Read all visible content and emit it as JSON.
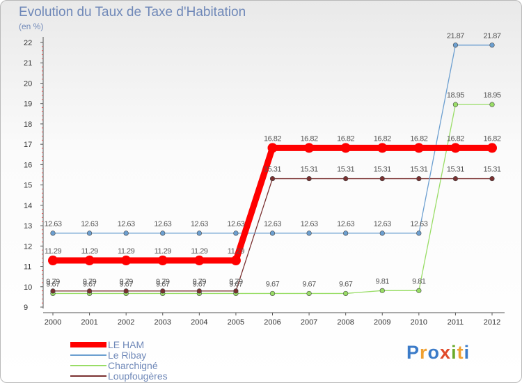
{
  "title": "Evolution du Taux de Taxe d'Habitation",
  "subtitle": "(en %)",
  "logo": {
    "letters": [
      "P",
      "r",
      "o",
      "x",
      "i",
      "t",
      "i"
    ],
    "colors": [
      "#3b7bc8",
      "#f0a030",
      "#3b7bc8",
      "#e04a2a",
      "#6aaa2a",
      "#f0a030",
      "#3b7bc8"
    ]
  },
  "chart_data": {
    "type": "line",
    "title": "Evolution du Taux de Taxe d'Habitation",
    "ylabel": "(en %)",
    "xlabel": "",
    "x": [
      "2000",
      "2001",
      "2002",
      "2003",
      "2004",
      "2005",
      "2006",
      "2007",
      "2008",
      "2009",
      "2010",
      "2011",
      "2012"
    ],
    "ylim": [
      9,
      22
    ],
    "yticks": [
      "9",
      "10",
      "11",
      "12",
      "13",
      "14",
      "15",
      "16",
      "17",
      "18",
      "19",
      "20",
      "21",
      "22"
    ],
    "legend_position": "bottom-left",
    "series": [
      {
        "name": "LE HAM",
        "color": "#ff0000",
        "values": [
          11.29,
          11.29,
          11.29,
          11.29,
          11.29,
          11.29,
          16.82,
          16.82,
          16.82,
          16.82,
          16.82,
          16.82,
          16.82
        ],
        "labels": [
          "11.29",
          "11.29",
          "11.29",
          "11.29",
          "11.29",
          "11.29",
          "16.82",
          "16.82",
          "16.82",
          "16.82",
          "16.82",
          "16.82",
          "16.82"
        ]
      },
      {
        "name": "Le Ribay",
        "color": "#6c9fd0",
        "values": [
          12.63,
          12.63,
          12.63,
          12.63,
          12.63,
          12.63,
          12.63,
          12.63,
          12.63,
          12.63,
          12.63,
          21.87,
          21.87
        ],
        "labels": [
          "12.63",
          "12.63",
          "12.63",
          "12.63",
          "12.63",
          "12.63",
          "12.63",
          "12.63",
          "12.63",
          "12.63",
          "12.63",
          "21.87",
          "21.87"
        ]
      },
      {
        "name": "Charchigné",
        "color": "#99dd66",
        "values": [
          9.67,
          9.67,
          9.67,
          9.67,
          9.67,
          9.67,
          9.67,
          9.67,
          9.67,
          9.81,
          9.81,
          18.95,
          18.95
        ],
        "labels": [
          "9.67",
          "9.67",
          "9.67",
          "9.67",
          "9.67",
          "9.67",
          "9.67",
          "9.67",
          "9.67",
          "9.81",
          "9.81",
          "18.95",
          "18.95"
        ]
      },
      {
        "name": "Loupfougères",
        "color": "#7a3030",
        "values": [
          9.79,
          9.79,
          9.79,
          9.79,
          9.79,
          9.79,
          15.31,
          15.31,
          15.31,
          15.31,
          15.31,
          15.31,
          15.31
        ],
        "labels": [
          "9.79",
          "9.79",
          "9.79",
          "9.79",
          "9.79",
          "9.79",
          "15.31",
          "15.31",
          "15.31",
          "15.31",
          "15.31",
          "15.31",
          "15.31"
        ]
      }
    ]
  }
}
